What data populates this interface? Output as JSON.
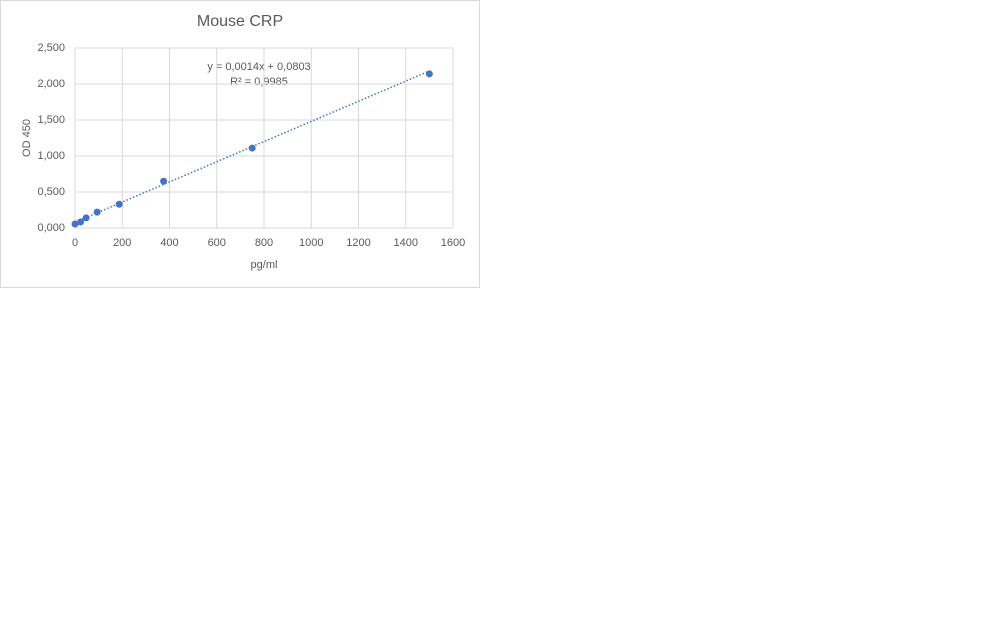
{
  "chart_data": {
    "type": "scatter",
    "title": "Mouse CRP",
    "x_label": "pg/ml",
    "y_label": "OD 450",
    "x": [
      0,
      23.4,
      46.9,
      93.75,
      187.5,
      375,
      750,
      1500
    ],
    "values": [
      0.056,
      0.083,
      0.14,
      0.22,
      0.33,
      0.65,
      1.11,
      2.14
    ],
    "color": "#4472c4",
    "xlim": [
      0,
      1600
    ],
    "xticks": [
      0,
      200,
      400,
      600,
      800,
      1000,
      1200,
      1400,
      1600
    ],
    "ylim": [
      0,
      2.5
    ],
    "yticks": [
      {
        "value": 0,
        "label": "0,000"
      },
      {
        "value": 0.5,
        "label": "0,500"
      },
      {
        "value": 1,
        "label": "1,000"
      },
      {
        "value": 1.5,
        "label": "1,500"
      },
      {
        "value": 2,
        "label": "2,000"
      },
      {
        "value": 2.5,
        "label": "2,500"
      }
    ],
    "grid": true,
    "trendline": {
      "slope": 0.0014,
      "intercept": 0.0803,
      "label": "y = 0,0014x + 0,0803",
      "r2_label": "R² = 0,9985"
    }
  }
}
